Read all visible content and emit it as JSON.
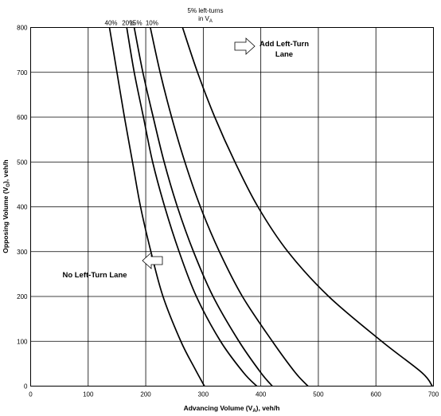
{
  "chart_data": {
    "type": "line",
    "xlabel": {
      "main": "Advancing Volume (V",
      "sub": "A",
      "tail": "), veh/h"
    },
    "ylabel": {
      "main": "Opposing Volume (V",
      "sub": "O",
      "tail": "), veh/h"
    },
    "xlim": [
      0,
      700
    ],
    "ylim": [
      0,
      800
    ],
    "x_ticks": [
      0,
      100,
      200,
      300,
      400,
      500,
      600,
      700
    ],
    "y_ticks": [
      0,
      100,
      200,
      300,
      400,
      500,
      600,
      700,
      800
    ],
    "grid": true,
    "curve_label_heading": {
      "line1": "5% left-turns",
      "line2_main": "in V",
      "line2_sub": "A"
    },
    "series": [
      {
        "name": "40%",
        "points": [
          [
            137,
            800
          ],
          [
            150,
            700
          ],
          [
            163,
            600
          ],
          [
            177,
            500
          ],
          [
            191,
            400
          ],
          [
            209,
            300
          ],
          [
            230,
            200
          ],
          [
            261,
            100
          ],
          [
            285,
            40
          ],
          [
            302,
            0
          ]
        ]
      },
      {
        "name": "20%",
        "points": [
          [
            167,
            800
          ],
          [
            180,
            700
          ],
          [
            196,
            600
          ],
          [
            212,
            500
          ],
          [
            233,
            400
          ],
          [
            258,
            300
          ],
          [
            288,
            200
          ],
          [
            330,
            100
          ],
          [
            370,
            30
          ],
          [
            393,
            0
          ]
        ]
      },
      {
        "name": "15%",
        "points": [
          [
            180,
            800
          ],
          [
            195,
            700
          ],
          [
            213,
            600
          ],
          [
            232,
            500
          ],
          [
            255,
            400
          ],
          [
            283,
            300
          ],
          [
            317,
            200
          ],
          [
            362,
            100
          ],
          [
            400,
            30
          ],
          [
            420,
            0
          ]
        ]
      },
      {
        "name": "10%",
        "points": [
          [
            208,
            800
          ],
          [
            225,
            700
          ],
          [
            245,
            600
          ],
          [
            268,
            500
          ],
          [
            295,
            400
          ],
          [
            328,
            300
          ],
          [
            368,
            200
          ],
          [
            420,
            100
          ],
          [
            460,
            30
          ],
          [
            482,
            0
          ]
        ]
      },
      {
        "name": "5%",
        "points": [
          [
            264,
            800
          ],
          [
            290,
            700
          ],
          [
            320,
            600
          ],
          [
            355,
            500
          ],
          [
            395,
            400
          ],
          [
            447,
            300
          ],
          [
            518,
            200
          ],
          [
            610,
            100
          ],
          [
            680,
            30
          ],
          [
            698,
            0
          ]
        ]
      }
    ],
    "annotations": [
      {
        "text_lines": [
          "Add Left-Turn",
          "Lane"
        ],
        "arrow": "right",
        "x": 330,
        "y": 760
      },
      {
        "text_lines": [
          "No Left-Turn Lane"
        ],
        "arrow": "left",
        "x": 220,
        "y": 280
      }
    ]
  }
}
